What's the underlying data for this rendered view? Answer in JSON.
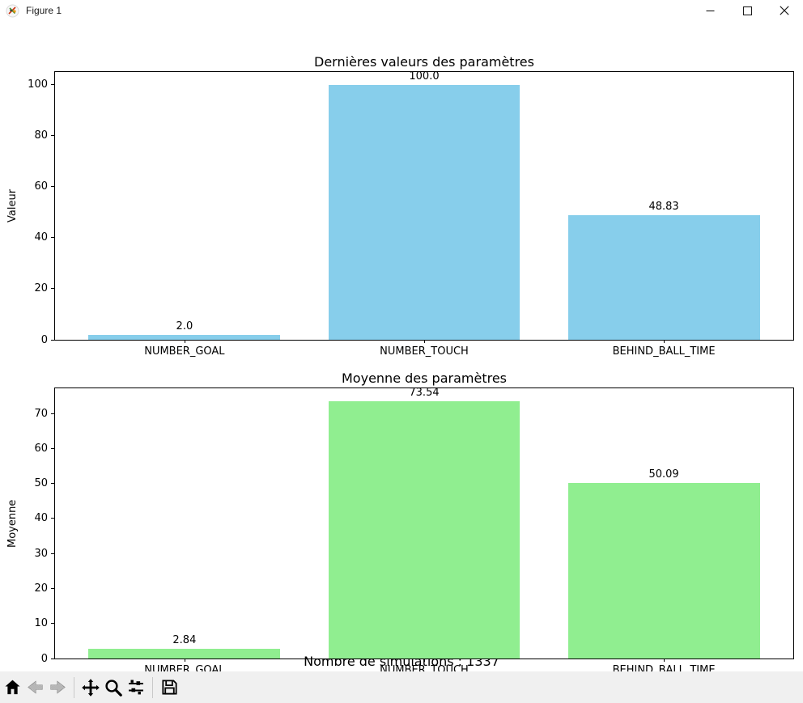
{
  "window": {
    "title": "Figure 1",
    "controls": [
      {
        "name": "minimize"
      },
      {
        "name": "maximize"
      },
      {
        "name": "close"
      }
    ]
  },
  "figure": {
    "footnote": "Nombre de simulations : 1337",
    "background": "#ffffff"
  },
  "toolbar": {
    "background": "#f0f0f0",
    "buttons": [
      {
        "icon": "home-icon",
        "disabled": false
      },
      {
        "icon": "back-arrow-icon",
        "disabled": true
      },
      {
        "icon": "forward-arrow-icon",
        "disabled": true
      },
      {
        "icon": "pan-icon",
        "disabled": false
      },
      {
        "icon": "zoom-to-rect-icon",
        "disabled": false
      },
      {
        "icon": "configure-subplots-icon",
        "disabled": false
      },
      {
        "icon": "save-icon",
        "disabled": false
      }
    ]
  },
  "chart_data": [
    {
      "type": "bar",
      "title": "Dernières valeurs des paramètres",
      "xlabel": "",
      "ylabel": "Valeur",
      "categories": [
        "NUMBER_GOAL",
        "NUMBER_TOUCH",
        "BEHIND_BALL_TIME"
      ],
      "values": [
        2.0,
        100.0,
        48.83
      ],
      "bar_labels": [
        "2.0",
        "100.0",
        "48.83"
      ],
      "bar_color": "#87ceeb",
      "ylim": [
        0,
        105
      ],
      "yticks": [
        0,
        20,
        40,
        60,
        80,
        100
      ],
      "grid": false,
      "legend": null
    },
    {
      "type": "bar",
      "title": "Moyenne des paramètres",
      "xlabel": "",
      "ylabel": "Moyenne",
      "categories": [
        "NUMBER_GOAL",
        "NUMBER_TOUCH",
        "BEHIND_BALL_TIME"
      ],
      "values": [
        2.84,
        73.54,
        50.09
      ],
      "bar_labels": [
        "2.84",
        "73.54",
        "50.09"
      ],
      "bar_color": "#90ee90",
      "ylim": [
        0,
        77.2
      ],
      "yticks": [
        0,
        10,
        20,
        30,
        40,
        50,
        60,
        70
      ],
      "grid": false,
      "legend": null
    }
  ]
}
